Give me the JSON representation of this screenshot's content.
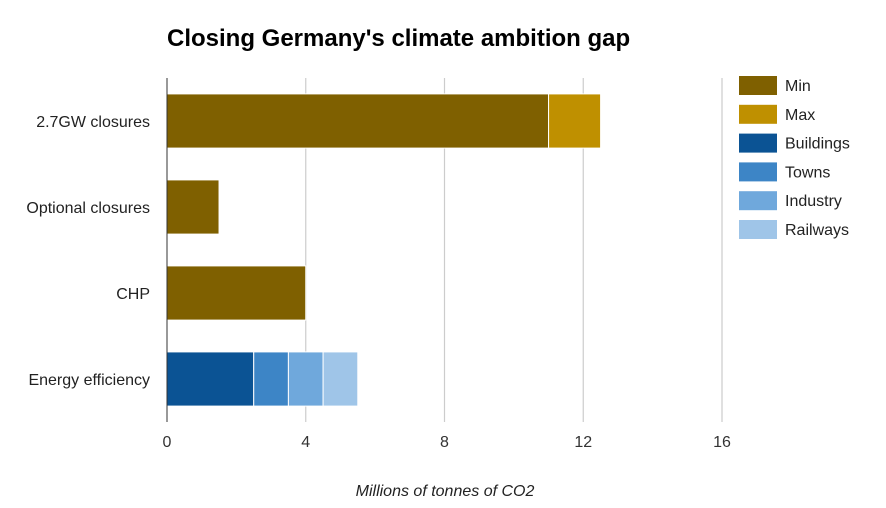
{
  "chart_data": {
    "type": "bar",
    "orientation": "horizontal",
    "stacked": true,
    "title": "Closing Germany's climate ambition gap",
    "xlabel": "Millions of tonnes of CO2",
    "ylabel": "",
    "xlim": [
      0,
      16
    ],
    "xticks": [
      "0",
      "4",
      "8",
      "12",
      "16"
    ],
    "grid": true,
    "legend_position": "right",
    "categories": [
      "2.7GW closures",
      "Optional closures",
      "CHP",
      "Energy efficiency"
    ],
    "series": [
      {
        "name": "Min",
        "color": "#7f6000",
        "values": [
          11,
          1.5,
          4,
          0
        ]
      },
      {
        "name": "Max",
        "color": "#bf9000",
        "values": [
          1.5,
          0,
          0,
          0
        ]
      },
      {
        "name": "Buildings",
        "color": "#0b5394",
        "values": [
          0,
          0,
          0,
          2.5
        ]
      },
      {
        "name": "Towns",
        "color": "#3d85c6",
        "values": [
          0,
          0,
          0,
          1
        ]
      },
      {
        "name": "Industry",
        "color": "#6fa8dc",
        "values": [
          0,
          0,
          0,
          1
        ]
      },
      {
        "name": "Railways",
        "color": "#9fc5e8",
        "values": [
          0,
          0,
          0,
          1
        ]
      }
    ]
  }
}
